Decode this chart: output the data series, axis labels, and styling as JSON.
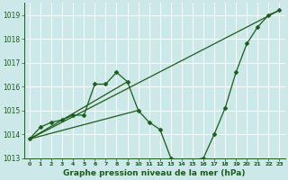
{
  "title": "Graphe pression niveau de la mer (hPa)",
  "bg_color": "#cce8e8",
  "grid_color": "#ffffff",
  "line_color": "#1a5c1a",
  "marker_color": "#1a5c1a",
  "series_main": {
    "x": [
      0,
      1,
      2,
      3,
      4,
      5,
      6,
      7,
      8,
      9,
      10,
      11,
      12,
      13,
      14,
      15,
      16,
      17,
      18,
      19,
      20,
      21,
      22,
      23
    ],
    "y": [
      1013.8,
      1014.3,
      1014.5,
      1014.6,
      1014.8,
      1014.8,
      1016.1,
      1016.1,
      1016.6,
      1016.2,
      1015.0,
      1014.5,
      1014.2,
      1013.0,
      1012.7,
      1012.9,
      1013.0,
      1014.0,
      1015.1,
      1016.6,
      1017.8,
      1018.5,
      1019.0,
      1019.2
    ]
  },
  "series_extra": [
    {
      "x": [
        0,
        10
      ],
      "y": [
        1013.8,
        1015.0
      ]
    },
    {
      "x": [
        0,
        23
      ],
      "y": [
        1013.8,
        1019.2
      ]
    },
    {
      "x": [
        0,
        9
      ],
      "y": [
        1013.8,
        1016.2
      ]
    }
  ],
  "xlim": [
    -0.5,
    23.5
  ],
  "ylim": [
    1013,
    1019.5
  ],
  "yticks": [
    1013,
    1014,
    1015,
    1016,
    1017,
    1018,
    1019
  ],
  "xticks": [
    0,
    1,
    2,
    3,
    4,
    5,
    6,
    7,
    8,
    9,
    10,
    11,
    12,
    13,
    14,
    15,
    16,
    17,
    18,
    19,
    20,
    21,
    22,
    23
  ],
  "xlabel_fontsize": 6.5,
  "ytick_fontsize": 5.5,
  "xtick_fontsize": 4.5,
  "linewidth": 0.9,
  "markersize": 2.5
}
